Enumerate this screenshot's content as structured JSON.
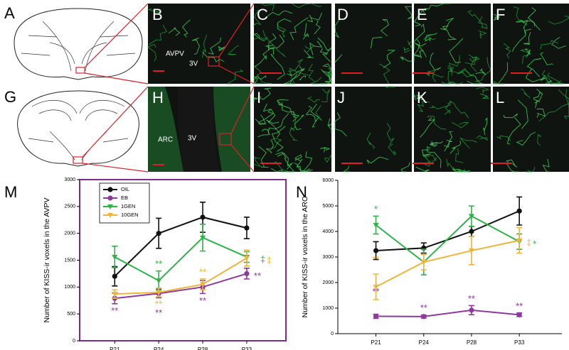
{
  "panels": {
    "letters": [
      "A",
      "B",
      "C",
      "D",
      "E",
      "F",
      "G",
      "H",
      "I",
      "J",
      "K",
      "L",
      "M",
      "N"
    ],
    "image_labels": [
      "AVPV",
      "3V",
      "ARC",
      "3V"
    ]
  },
  "chart_data": [
    {
      "type": "line",
      "ylabel": "Number of KISS-ir voxels in the AVPV",
      "categories": [
        "P21",
        "P24",
        "P28",
        "P33"
      ],
      "ylim": [
        0,
        3000
      ],
      "yticks": [
        0,
        500,
        1000,
        1500,
        2000,
        2500,
        3000
      ],
      "legend": "upper left",
      "frame_color": "#7b2c8c",
      "series": [
        {
          "name": "OIL",
          "color": "#111111",
          "marker": "circle",
          "values": [
            1200,
            2000,
            2300,
            2100
          ],
          "errors": [
            180,
            280,
            280,
            200
          ]
        },
        {
          "name": "EB",
          "color": "#8e3a9d",
          "marker": "circle",
          "values": [
            790,
            880,
            1000,
            1250
          ],
          "errors": [
            100,
            80,
            120,
            100
          ]
        },
        {
          "name": "1GEN",
          "color": "#2db34a",
          "marker": "triangle-down",
          "values": [
            1560,
            1120,
            1920,
            1560
          ],
          "errors": [
            200,
            180,
            250,
            100
          ]
        },
        {
          "name": "10GEN",
          "color": "#f0b43c",
          "marker": "triangle-down",
          "values": [
            870,
            900,
            1050,
            1540
          ],
          "errors": [
            80,
            80,
            100,
            150
          ]
        }
      ],
      "annotations": [
        {
          "text": "**",
          "series": "EB",
          "category": "P21",
          "position": "below"
        },
        {
          "text": "**",
          "series": "1GEN",
          "category": "P24",
          "position": "above"
        },
        {
          "text": "**",
          "series": "10GEN",
          "category": "P24",
          "position": "below"
        },
        {
          "text": "**",
          "series": "EB",
          "category": "P24",
          "position": "below"
        },
        {
          "text": "**",
          "series": "10GEN",
          "category": "P28",
          "position": "above"
        },
        {
          "text": "**",
          "series": "EB",
          "category": "P28",
          "position": "below"
        },
        {
          "text": "**",
          "series": "EB",
          "category": "P33",
          "position": "right"
        },
        {
          "text": "‡",
          "series": "1GEN",
          "category": "P33",
          "position": "right"
        },
        {
          "text": "‡",
          "series": "10GEN",
          "category": "P33",
          "position": "right"
        }
      ]
    },
    {
      "type": "line",
      "ylabel": "Number of KISS-ir voxels in the ARC",
      "categories": [
        "P21",
        "P24",
        "P28",
        "P33"
      ],
      "ylim": [
        0,
        6000
      ],
      "yticks": [
        0,
        1000,
        2000,
        3000,
        4000,
        5000,
        6000
      ],
      "series": [
        {
          "name": "OIL",
          "color": "#111111",
          "marker": "circle",
          "values": [
            3250,
            3350,
            4000,
            4800
          ],
          "errors": [
            350,
            200,
            200,
            550
          ]
        },
        {
          "name": "EB",
          "color": "#8e3a9d",
          "marker": "circle",
          "values": [
            680,
            670,
            920,
            740
          ],
          "errors": [
            80,
            60,
            180,
            70
          ]
        },
        {
          "name": "1GEN",
          "color": "#2db34a",
          "marker": "triangle-down",
          "values": [
            4250,
            2800,
            4600,
            3600
          ],
          "errors": [
            350,
            500,
            400,
            300
          ]
        },
        {
          "name": "10GEN",
          "color": "#f0b43c",
          "marker": "triangle-down",
          "values": [
            1830,
            2800,
            3250,
            3650
          ],
          "errors": [
            500,
            300,
            550,
            500
          ]
        }
      ],
      "annotations": [
        {
          "text": "*",
          "series": "1GEN",
          "category": "P21",
          "position": "above"
        },
        {
          "text": "**",
          "series": "10GEN",
          "category": "P21",
          "position": "above"
        },
        {
          "text": "**",
          "series": "EB",
          "category": "P21",
          "position": "above"
        },
        {
          "text": "**",
          "series": "EB",
          "category": "P24",
          "position": "above"
        },
        {
          "text": "**",
          "series": "EB",
          "category": "P28",
          "position": "above"
        },
        {
          "text": "**",
          "series": "EB",
          "category": "P33",
          "position": "above"
        },
        {
          "text": "‡",
          "series": "10GEN",
          "category": "P33",
          "position": "right"
        },
        {
          "text": "*",
          "series": "1GEN",
          "category": "P33",
          "position": "right"
        }
      ]
    }
  ]
}
